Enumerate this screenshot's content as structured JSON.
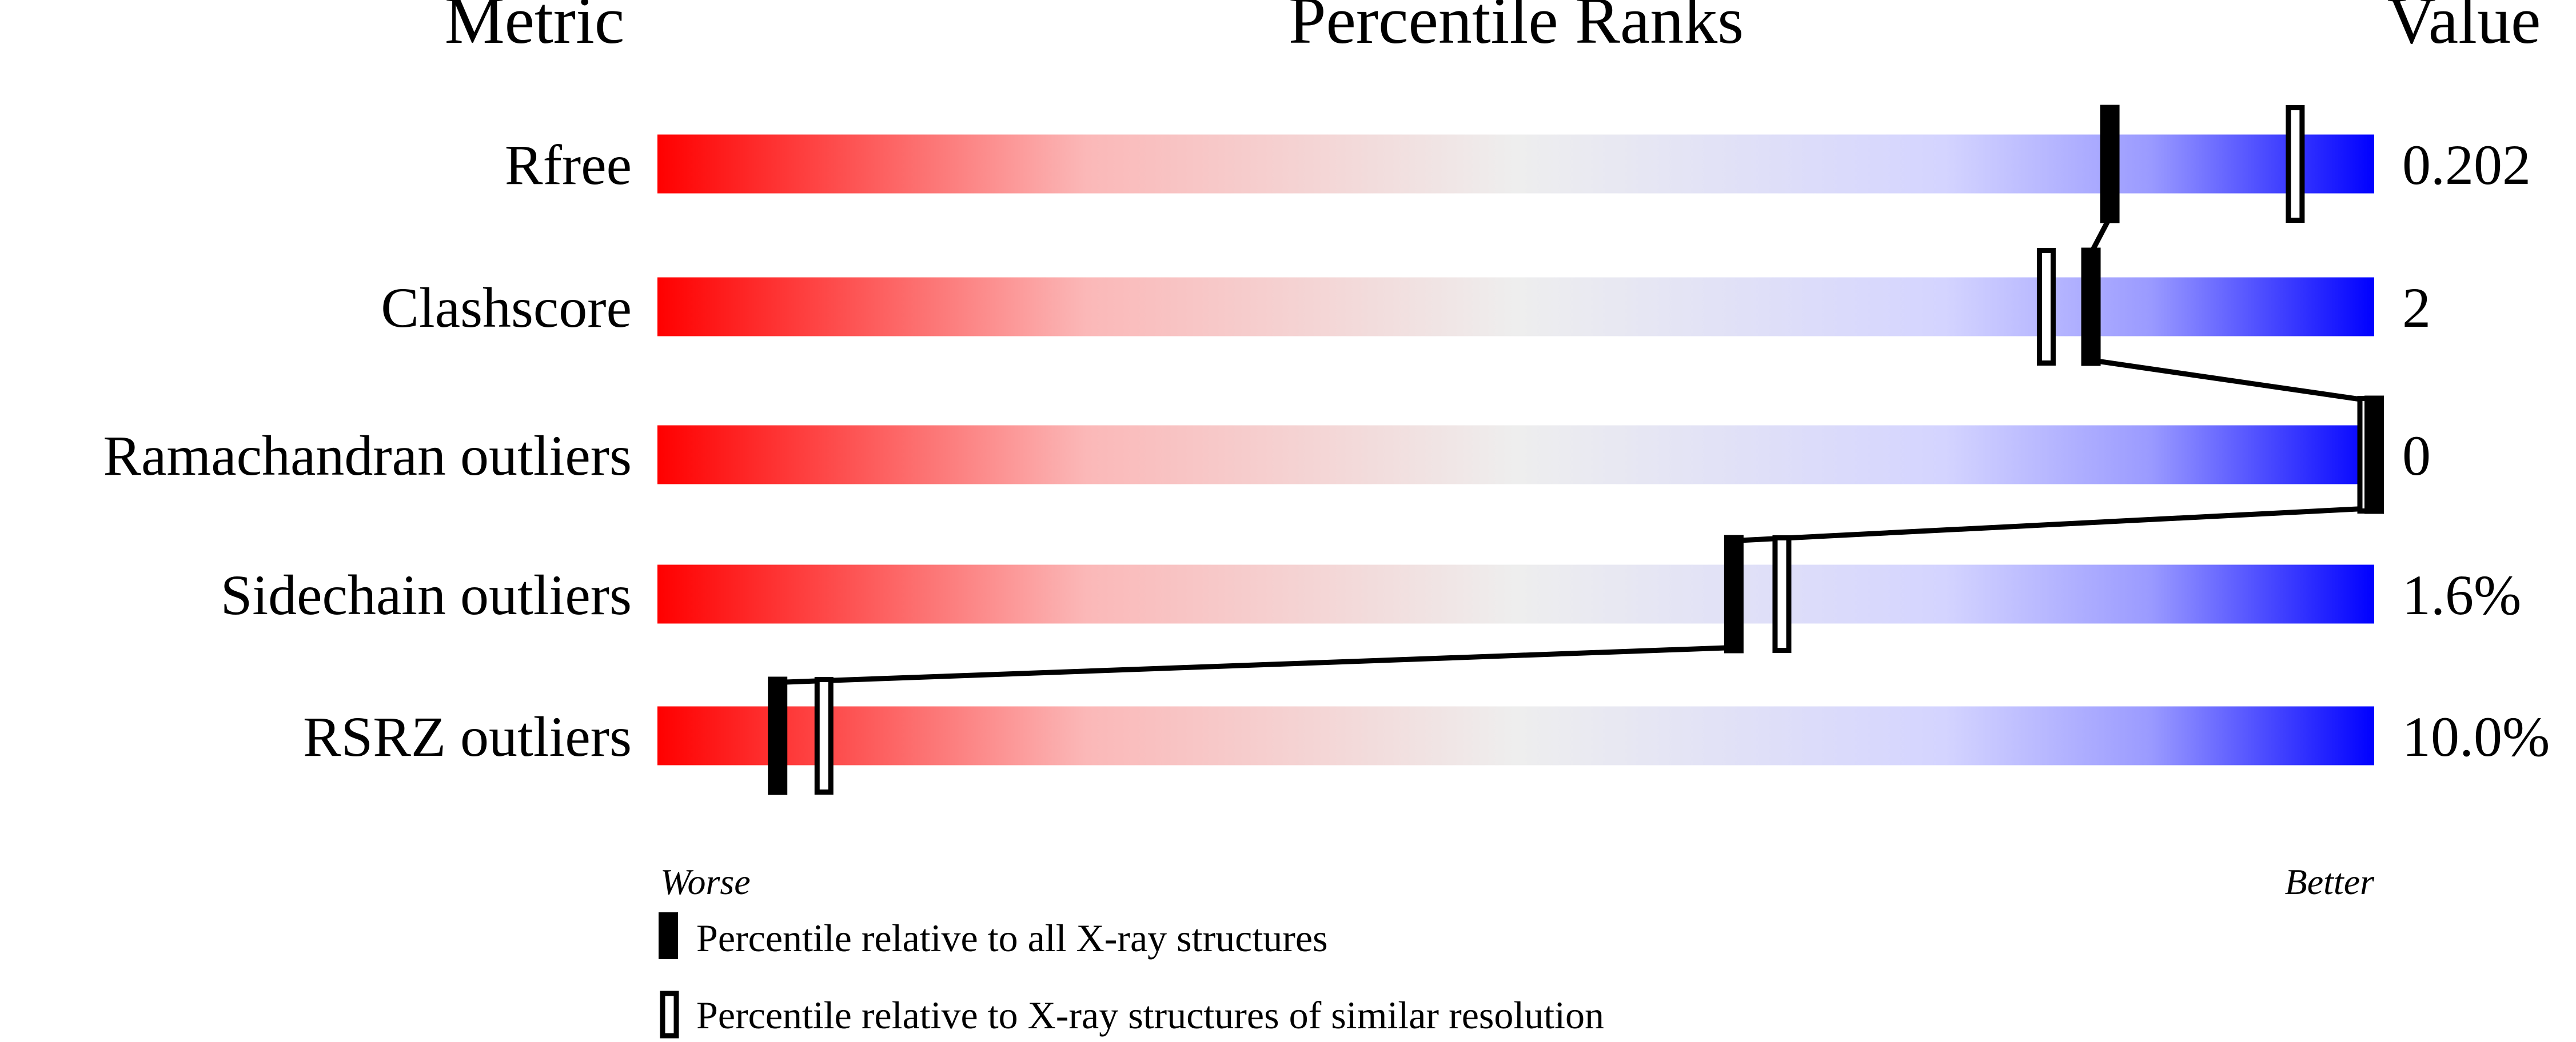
{
  "chart_data": {
    "type": "bar",
    "subtype": "percentile-slider",
    "headers": {
      "metric": "Metric",
      "ranks": "Percentile Ranks",
      "value": "Value"
    },
    "xlim": [
      0,
      100
    ],
    "axis_labels": {
      "left": "Worse",
      "right": "Better"
    },
    "gradient_colors": [
      "#ff0000",
      "#eeeeee",
      "#0000ff"
    ],
    "rows": [
      {
        "metric": "Rfree",
        "value": "0.202",
        "percentile_all": 84.6,
        "percentile_similar": 95.4
      },
      {
        "metric": "Clashscore",
        "value": "2",
        "percentile_all": 83.5,
        "percentile_similar": 80.9
      },
      {
        "metric": "Ramachandran outliers",
        "value": "0",
        "percentile_all": 100,
        "percentile_similar": 100
      },
      {
        "metric": "Sidechain outliers",
        "value": "1.6%",
        "percentile_all": 62.7,
        "percentile_similar": 65.5
      },
      {
        "metric": "RSRZ outliers",
        "value": "10.0%",
        "percentile_all": 7.0,
        "percentile_similar": 9.7
      }
    ],
    "legend": [
      {
        "marker": "filled",
        "label": "Percentile relative to all X-ray structures"
      },
      {
        "marker": "open",
        "label": "Percentile relative to X-ray structures of similar resolution"
      }
    ],
    "legend_position": "bottom"
  }
}
